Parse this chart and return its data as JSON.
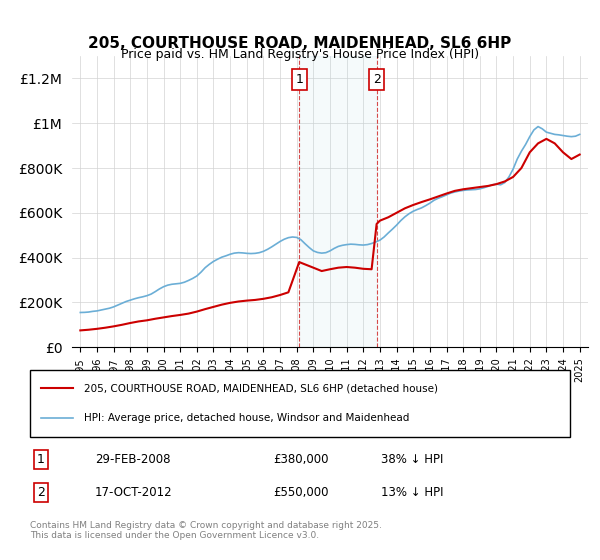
{
  "title": "205, COURTHOUSE ROAD, MAIDENHEAD, SL6 6HP",
  "subtitle": "Price paid vs. HM Land Registry's House Price Index (HPI)",
  "legend_line1": "205, COURTHOUSE ROAD, MAIDENHEAD, SL6 6HP (detached house)",
  "legend_line2": "HPI: Average price, detached house, Windsor and Maidenhead",
  "footnote": "Contains HM Land Registry data © Crown copyright and database right 2025.\nThis data is licensed under the Open Government Licence v3.0.",
  "hpi_color": "#6baed6",
  "price_color": "#cc0000",
  "transaction1": {
    "label": "1",
    "date": "29-FEB-2008",
    "price": "£380,000",
    "hpi": "38% ↓ HPI",
    "x_year": 2008.15
  },
  "transaction2": {
    "label": "2",
    "date": "17-OCT-2012",
    "price": "£550,000",
    "hpi": "13% ↓ HPI",
    "x_year": 2012.8
  },
  "shade_x1": 2008.15,
  "shade_x2": 2012.8,
  "ylim": [
    0,
    1300000
  ],
  "yticks": [
    0,
    200000,
    400000,
    600000,
    800000,
    1000000,
    1200000
  ],
  "xlim_start": 1994.5,
  "xlim_end": 2025.5,
  "hpi_data_x": [
    1995.0,
    1995.25,
    1995.5,
    1995.75,
    1996.0,
    1996.25,
    1996.5,
    1996.75,
    1997.0,
    1997.25,
    1997.5,
    1997.75,
    1998.0,
    1998.25,
    1998.5,
    1998.75,
    1999.0,
    1999.25,
    1999.5,
    1999.75,
    2000.0,
    2000.25,
    2000.5,
    2000.75,
    2001.0,
    2001.25,
    2001.5,
    2001.75,
    2002.0,
    2002.25,
    2002.5,
    2002.75,
    2003.0,
    2003.25,
    2003.5,
    2003.75,
    2004.0,
    2004.25,
    2004.5,
    2004.75,
    2005.0,
    2005.25,
    2005.5,
    2005.75,
    2006.0,
    2006.25,
    2006.5,
    2006.75,
    2007.0,
    2007.25,
    2007.5,
    2007.75,
    2008.0,
    2008.25,
    2008.5,
    2008.75,
    2009.0,
    2009.25,
    2009.5,
    2009.75,
    2010.0,
    2010.25,
    2010.5,
    2010.75,
    2011.0,
    2011.25,
    2011.5,
    2011.75,
    2012.0,
    2012.25,
    2012.5,
    2012.75,
    2013.0,
    2013.25,
    2013.5,
    2013.75,
    2014.0,
    2014.25,
    2014.5,
    2014.75,
    2015.0,
    2015.25,
    2015.5,
    2015.75,
    2016.0,
    2016.25,
    2016.5,
    2016.75,
    2017.0,
    2017.25,
    2017.5,
    2017.75,
    2018.0,
    2018.25,
    2018.5,
    2018.75,
    2019.0,
    2019.25,
    2019.5,
    2019.75,
    2020.0,
    2020.25,
    2020.5,
    2020.75,
    2021.0,
    2021.25,
    2021.5,
    2021.75,
    2022.0,
    2022.25,
    2022.5,
    2022.75,
    2023.0,
    2023.25,
    2023.5,
    2023.75,
    2024.0,
    2024.25,
    2024.5,
    2024.75,
    2025.0
  ],
  "hpi_data_y": [
    155000,
    155500,
    157000,
    160000,
    162000,
    166000,
    170000,
    174000,
    180000,
    188000,
    196000,
    204000,
    210000,
    216000,
    221000,
    225000,
    230000,
    237000,
    248000,
    260000,
    270000,
    277000,
    281000,
    283000,
    285000,
    290000,
    298000,
    307000,
    318000,
    335000,
    355000,
    370000,
    383000,
    393000,
    402000,
    408000,
    415000,
    420000,
    422000,
    421000,
    419000,
    418000,
    419000,
    422000,
    428000,
    437000,
    448000,
    460000,
    472000,
    482000,
    489000,
    492000,
    490000,
    480000,
    462000,
    445000,
    430000,
    423000,
    420000,
    422000,
    430000,
    441000,
    450000,
    455000,
    458000,
    460000,
    459000,
    457000,
    456000,
    458000,
    463000,
    470000,
    478000,
    492000,
    510000,
    527000,
    545000,
    565000,
    582000,
    596000,
    607000,
    615000,
    622000,
    632000,
    643000,
    656000,
    665000,
    672000,
    680000,
    688000,
    693000,
    697000,
    700000,
    702000,
    703000,
    704000,
    707000,
    712000,
    718000,
    725000,
    728000,
    725000,
    735000,
    760000,
    795000,
    840000,
    875000,
    905000,
    940000,
    970000,
    985000,
    975000,
    960000,
    955000,
    950000,
    948000,
    945000,
    942000,
    940000,
    942000,
    950000
  ],
  "price_data_x": [
    1995.0,
    1995.5,
    1996.0,
    1996.5,
    1997.0,
    1997.5,
    1998.0,
    1998.5,
    1999.0,
    1999.5,
    2000.0,
    2000.5,
    2001.0,
    2001.5,
    2002.0,
    2002.5,
    2003.0,
    2003.5,
    2004.0,
    2004.5,
    2005.0,
    2005.5,
    2006.0,
    2006.5,
    2007.0,
    2007.5,
    2008.15,
    2009.0,
    2009.5,
    2010.0,
    2010.5,
    2011.0,
    2011.5,
    2012.0,
    2012.5,
    2012.8,
    2013.0,
    2013.5,
    2014.0,
    2014.5,
    2015.0,
    2015.5,
    2016.0,
    2016.5,
    2017.0,
    2017.5,
    2018.0,
    2018.5,
    2019.0,
    2019.5,
    2020.0,
    2020.5,
    2021.0,
    2021.5,
    2022.0,
    2022.5,
    2023.0,
    2023.5,
    2024.0,
    2024.5,
    2025.0
  ],
  "price_data_y": [
    75000,
    78000,
    82000,
    87000,
    93000,
    100000,
    108000,
    115000,
    120000,
    127000,
    133000,
    139000,
    144000,
    150000,
    159000,
    170000,
    180000,
    190000,
    198000,
    204000,
    208000,
    211000,
    216000,
    223000,
    233000,
    245000,
    380000,
    355000,
    340000,
    348000,
    355000,
    358000,
    355000,
    350000,
    348000,
    550000,
    565000,
    580000,
    600000,
    620000,
    635000,
    648000,
    660000,
    673000,
    686000,
    698000,
    705000,
    710000,
    715000,
    720000,
    728000,
    740000,
    760000,
    800000,
    870000,
    910000,
    930000,
    910000,
    870000,
    840000,
    860000
  ]
}
